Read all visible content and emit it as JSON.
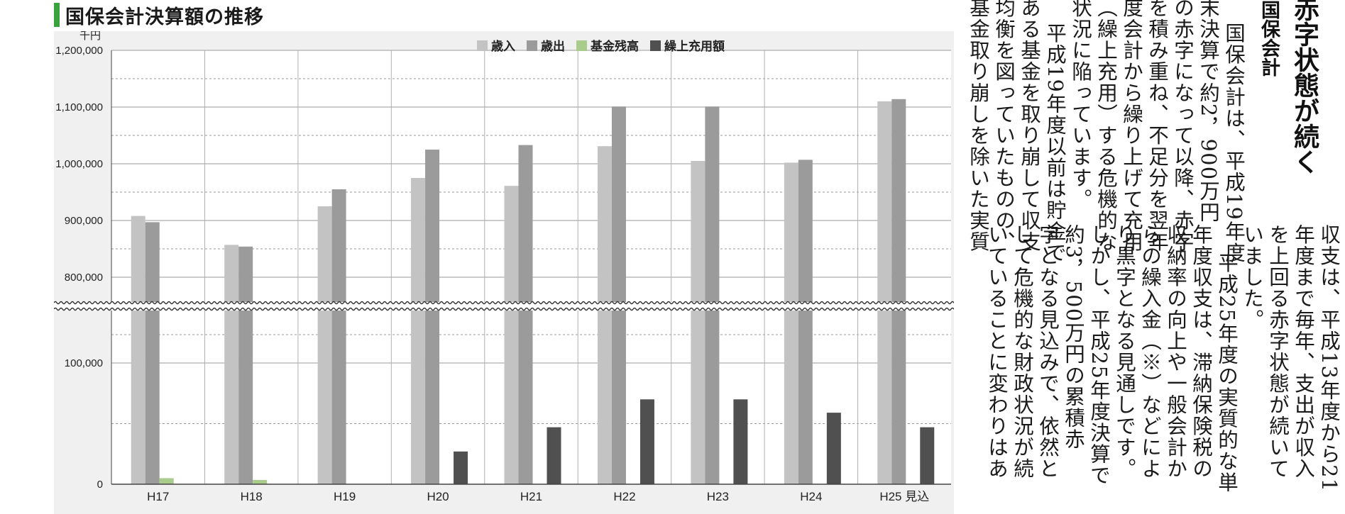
{
  "title": "国保会計決算額の推移",
  "chart_data": {
    "type": "bar",
    "unit": "千円",
    "categories": [
      "H17",
      "H18",
      "H19",
      "H20",
      "H21",
      "H22",
      "H23",
      "H24",
      "H25 見込"
    ],
    "series": [
      {
        "name": "歳入",
        "color": "#c3c3c3",
        "values": [
          908000,
          857000,
          925000,
          975000,
          961000,
          1031000,
          1005000,
          1002000,
          1110000
        ]
      },
      {
        "name": "歳出",
        "color": "#9b9b9b",
        "values": [
          897000,
          854000,
          955000,
          1025000,
          1033000,
          1101000,
          1101000,
          1007000,
          1114000
        ]
      },
      {
        "name": "基金残高",
        "color": "#a9cc8c",
        "values": [
          5000,
          3500,
          0,
          0,
          0,
          0,
          0,
          0,
          0
        ]
      },
      {
        "name": "繰上充用額",
        "color": "#505050",
        "values": [
          0,
          0,
          0,
          27000,
          47000,
          70000,
          70000,
          59000,
          47000
        ]
      }
    ],
    "y_axis": {
      "scale": "broken",
      "lower_range": [
        0,
        100000
      ],
      "upper_range": [
        800000,
        1200000
      ],
      "tick_labels": [
        "0",
        "100,000",
        "800,000",
        "900,000",
        "1,000,000",
        "1,100,000",
        "1,200,000"
      ],
      "tick_values": [
        0,
        100000,
        800000,
        900000,
        1000000,
        1100000,
        1200000
      ]
    },
    "legend_position": "top-right",
    "grid": true
  },
  "article": {
    "heading_top": "赤字状態が続く",
    "heading_sub": "国保会計",
    "block1": [
      "国保会計は、平成19年度",
      "末決算で約2，900万円",
      "の赤字になって以降、赤字",
      "を積み重ね、不足分を翌年",
      "度会計から繰り上げて充用",
      "（繰上充用）する危機的な",
      "状況に陥っています。",
      "平成19年度以前は貯金で",
      "ある基金を取り崩して収支",
      "均衡を図っていたものの、",
      "基金取り崩しを除いた実質"
    ],
    "block2": [
      "収支は、平成13年度から21",
      "年度まで毎年、支出が収入",
      "を上回る赤字状態が続いて",
      "いました。",
      "平成25年度の実質的な単",
      "年度収支は、滞納保険税の",
      "収納率の向上や一般会計か",
      "らの繰入金（※）などによ",
      "り黒字となる見通しです。",
      "しかし、平成25年度決算で",
      "約3，500万円の累積赤",
      "字となる見込みで、依然と",
      "して危機的な財政状況が続",
      "いていることに変わりはあ"
    ]
  },
  "colors": {
    "accent_green": "#3aa23a",
    "panel_bg": "#f0f0f0",
    "note_mark": "#3aa23a"
  }
}
